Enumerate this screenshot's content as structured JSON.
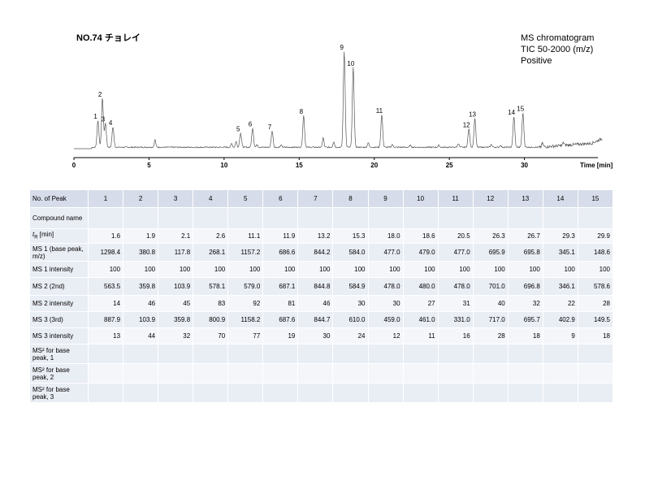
{
  "title": "NO.74 チョレイ",
  "info_lines": [
    "MS chromatogram",
    "TIC 50-2000 (m/z)",
    "Positive"
  ],
  "chart_data": {
    "type": "line",
    "xlabel": "Time [min]",
    "xlim": [
      0,
      35
    ],
    "x_ticks": [
      "0",
      "5",
      "10",
      "15",
      "20",
      "25",
      "30"
    ],
    "ylim": [
      0,
      1
    ],
    "peak_labels": [
      {
        "label": "1",
        "x": 1.6,
        "y": 0.28
      },
      {
        "label": "2",
        "x": 1.9,
        "y": 0.51
      },
      {
        "label": "3",
        "x": 2.1,
        "y": 0.25
      },
      {
        "label": "4",
        "x": 2.6,
        "y": 0.21
      },
      {
        "label": "5",
        "x": 11.1,
        "y": 0.15
      },
      {
        "label": "6",
        "x": 11.9,
        "y": 0.2
      },
      {
        "label": "7",
        "x": 13.2,
        "y": 0.17
      },
      {
        "label": "8",
        "x": 15.3,
        "y": 0.33
      },
      {
        "label": "9",
        "x": 18.0,
        "y": 1.0
      },
      {
        "label": "10",
        "x": 18.6,
        "y": 0.83
      },
      {
        "label": "11",
        "x": 20.5,
        "y": 0.34
      },
      {
        "label": "12",
        "x": 26.3,
        "y": 0.19
      },
      {
        "label": "13",
        "x": 26.7,
        "y": 0.3
      },
      {
        "label": "14",
        "x": 29.3,
        "y": 0.32
      },
      {
        "label": "15",
        "x": 29.9,
        "y": 0.36
      }
    ]
  },
  "table": {
    "peak_header": "No. of Peak",
    "peaks": [
      "1",
      "2",
      "3",
      "4",
      "5",
      "6",
      "7",
      "8",
      "9",
      "10",
      "11",
      "12",
      "13",
      "14",
      "15"
    ],
    "rows": [
      {
        "label": "Compound name",
        "values": [
          "",
          "",
          "",
          "",
          "",
          "",
          "",
          "",
          "",
          "",
          "",
          "",
          "",
          "",
          ""
        ]
      },
      {
        "label": "tR [min]",
        "label_main": "t",
        "label_sub": "R",
        "label_rest": " [min]",
        "values": [
          "1.6",
          "1.9",
          "2.1",
          "2.6",
          "11.1",
          "11.9",
          "13.2",
          "15.3",
          "18.0",
          "18.6",
          "20.5",
          "26.3",
          "26.7",
          "29.3",
          "29.9"
        ]
      },
      {
        "label": "MS 1 (base peak, m/z)",
        "values": [
          "1298.4",
          "380.8",
          "117.8",
          "268.1",
          "1157.2",
          "686.6",
          "844.2",
          "584.0",
          "477.0",
          "479.0",
          "477.0",
          "695.9",
          "695.8",
          "345.1",
          "148.6"
        ]
      },
      {
        "label": "MS 1 intensity",
        "values": [
          "100",
          "100",
          "100",
          "100",
          "100",
          "100",
          "100",
          "100",
          "100",
          "100",
          "100",
          "100",
          "100",
          "100",
          "100"
        ]
      },
      {
        "label": "MS 2 (2nd)",
        "values": [
          "563.5",
          "359.8",
          "103.9",
          "578.1",
          "579.0",
          "687.1",
          "844.8",
          "584.9",
          "478.0",
          "480.0",
          "478.0",
          "701.0",
          "696.8",
          "346.1",
          "578.6"
        ]
      },
      {
        "label": "MS 2 intensity",
        "values": [
          "14",
          "46",
          "45",
          "83",
          "92",
          "81",
          "46",
          "30",
          "30",
          "27",
          "31",
          "40",
          "32",
          "22",
          "28"
        ]
      },
      {
        "label": "MS 3 (3rd)",
        "values": [
          "887.9",
          "103.9",
          "359.8",
          "800.9",
          "1158.2",
          "687.6",
          "844.7",
          "610.0",
          "459.0",
          "461.0",
          "331.0",
          "717.0",
          "695.7",
          "402.9",
          "149.5"
        ]
      },
      {
        "label": "MS 3 intensity",
        "values": [
          "13",
          "44",
          "32",
          "70",
          "77",
          "19",
          "30",
          "24",
          "12",
          "11",
          "16",
          "28",
          "18",
          "9",
          "18"
        ]
      },
      {
        "label": "MS² for base peak, 1",
        "values": [
          "",
          "",
          "",
          "",
          "",
          "",
          "",
          "",
          "",
          "",
          "",
          "",
          "",
          "",
          ""
        ]
      },
      {
        "label": "MS² for base peak, 2",
        "values": [
          "",
          "",
          "",
          "",
          "",
          "",
          "",
          "",
          "",
          "",
          "",
          "",
          "",
          "",
          ""
        ]
      },
      {
        "label": "MS² for base peak, 3",
        "values": [
          "",
          "",
          "",
          "",
          "",
          "",
          "",
          "",
          "",
          "",
          "",
          "",
          "",
          "",
          ""
        ]
      }
    ]
  }
}
